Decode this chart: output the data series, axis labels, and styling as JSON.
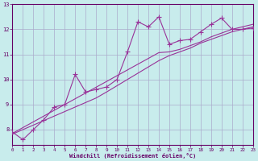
{
  "xlabel": "Windchill (Refroidissement éolien,°C)",
  "background_color": "#c8ecec",
  "line_color": "#993399",
  "grid_color": "#aaaacc",
  "axis_color": "#660066",
  "x_data": [
    0,
    1,
    2,
    3,
    4,
    5,
    6,
    7,
    8,
    9,
    10,
    11,
    12,
    13,
    14,
    15,
    16,
    17,
    18,
    19,
    20,
    21,
    22,
    23
  ],
  "y_series1": [
    7.9,
    7.6,
    8.0,
    8.4,
    8.9,
    9.0,
    10.2,
    9.5,
    9.6,
    9.7,
    10.0,
    11.1,
    12.3,
    12.1,
    12.5,
    11.4,
    11.55,
    11.6,
    11.9,
    12.2,
    12.45,
    12.0,
    12.0,
    12.05
  ],
  "y_linear1": [
    7.85,
    8.08,
    8.31,
    8.54,
    8.77,
    9.0,
    9.23,
    9.46,
    9.69,
    9.92,
    10.15,
    10.38,
    10.61,
    10.84,
    11.07,
    11.1,
    11.2,
    11.35,
    11.5,
    11.7,
    11.85,
    12.0,
    12.1,
    12.2
  ],
  "y_linear2": [
    7.82,
    8.0,
    8.18,
    8.36,
    8.54,
    8.72,
    8.9,
    9.08,
    9.26,
    9.5,
    9.75,
    10.0,
    10.25,
    10.5,
    10.75,
    10.95,
    11.1,
    11.25,
    11.45,
    11.6,
    11.75,
    11.9,
    12.0,
    12.1
  ],
  "xlim": [
    0,
    23
  ],
  "ylim": [
    7.4,
    13.0
  ],
  "yticks": [
    8,
    9,
    10,
    11,
    12,
    13
  ],
  "xticks": [
    0,
    1,
    2,
    3,
    4,
    5,
    6,
    7,
    8,
    9,
    10,
    11,
    12,
    13,
    14,
    15,
    16,
    17,
    18,
    19,
    20,
    21,
    22,
    23
  ],
  "marker": "+",
  "marker_size": 4,
  "linewidth": 0.8
}
